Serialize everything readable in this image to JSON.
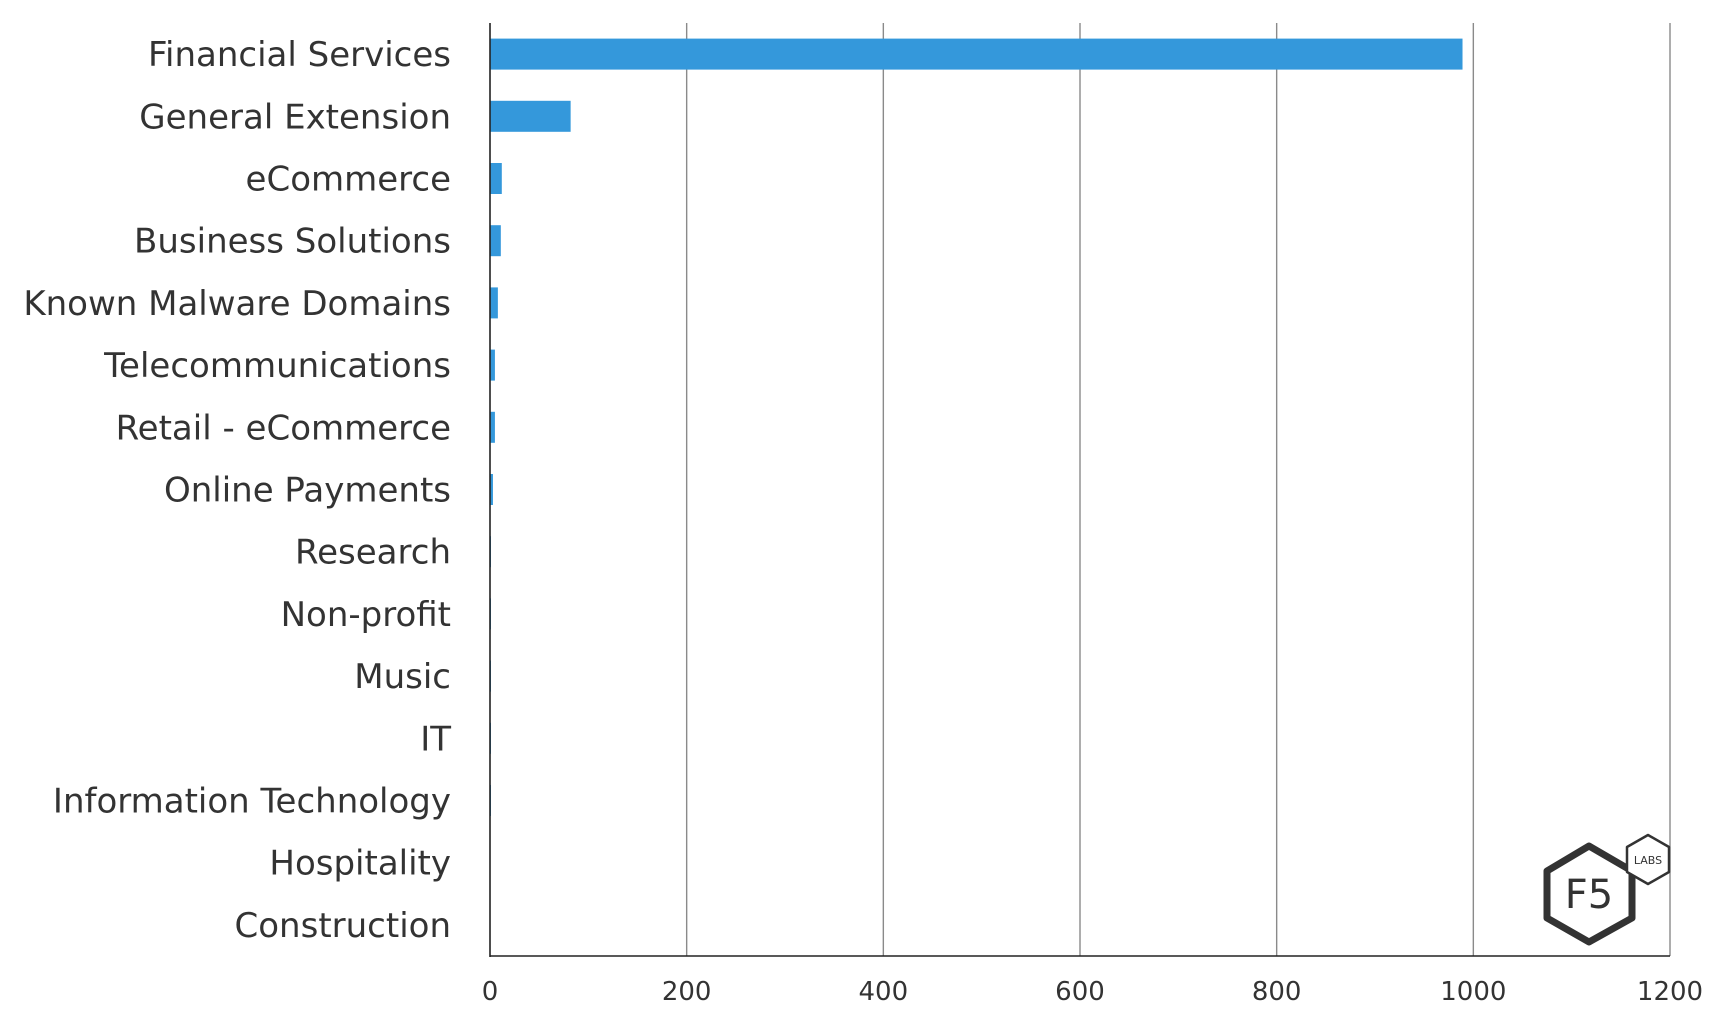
{
  "chart_data": {
    "type": "bar",
    "orientation": "horizontal",
    "categories": [
      "Financial Services",
      "General Extension",
      "eCommerce",
      "Business Solutions",
      "Known Malware Domains",
      "Telecommunications",
      "Retail - eCommerce",
      "Online Payments",
      "Research",
      "Non-profit",
      "Music",
      "IT",
      "Information Technology",
      "Hospitality",
      "Construction"
    ],
    "values": [
      989,
      82,
      12,
      11,
      8,
      5,
      5,
      3,
      1,
      1,
      1,
      1,
      1,
      0,
      0
    ],
    "xlim": [
      0,
      1200
    ],
    "x_ticks": [
      "0",
      "200",
      "400",
      "600",
      "800",
      "1000",
      "1200"
    ],
    "grid": true,
    "bar_color": "#3498db",
    "logo": {
      "text": "F5",
      "badge": "LABS"
    }
  }
}
